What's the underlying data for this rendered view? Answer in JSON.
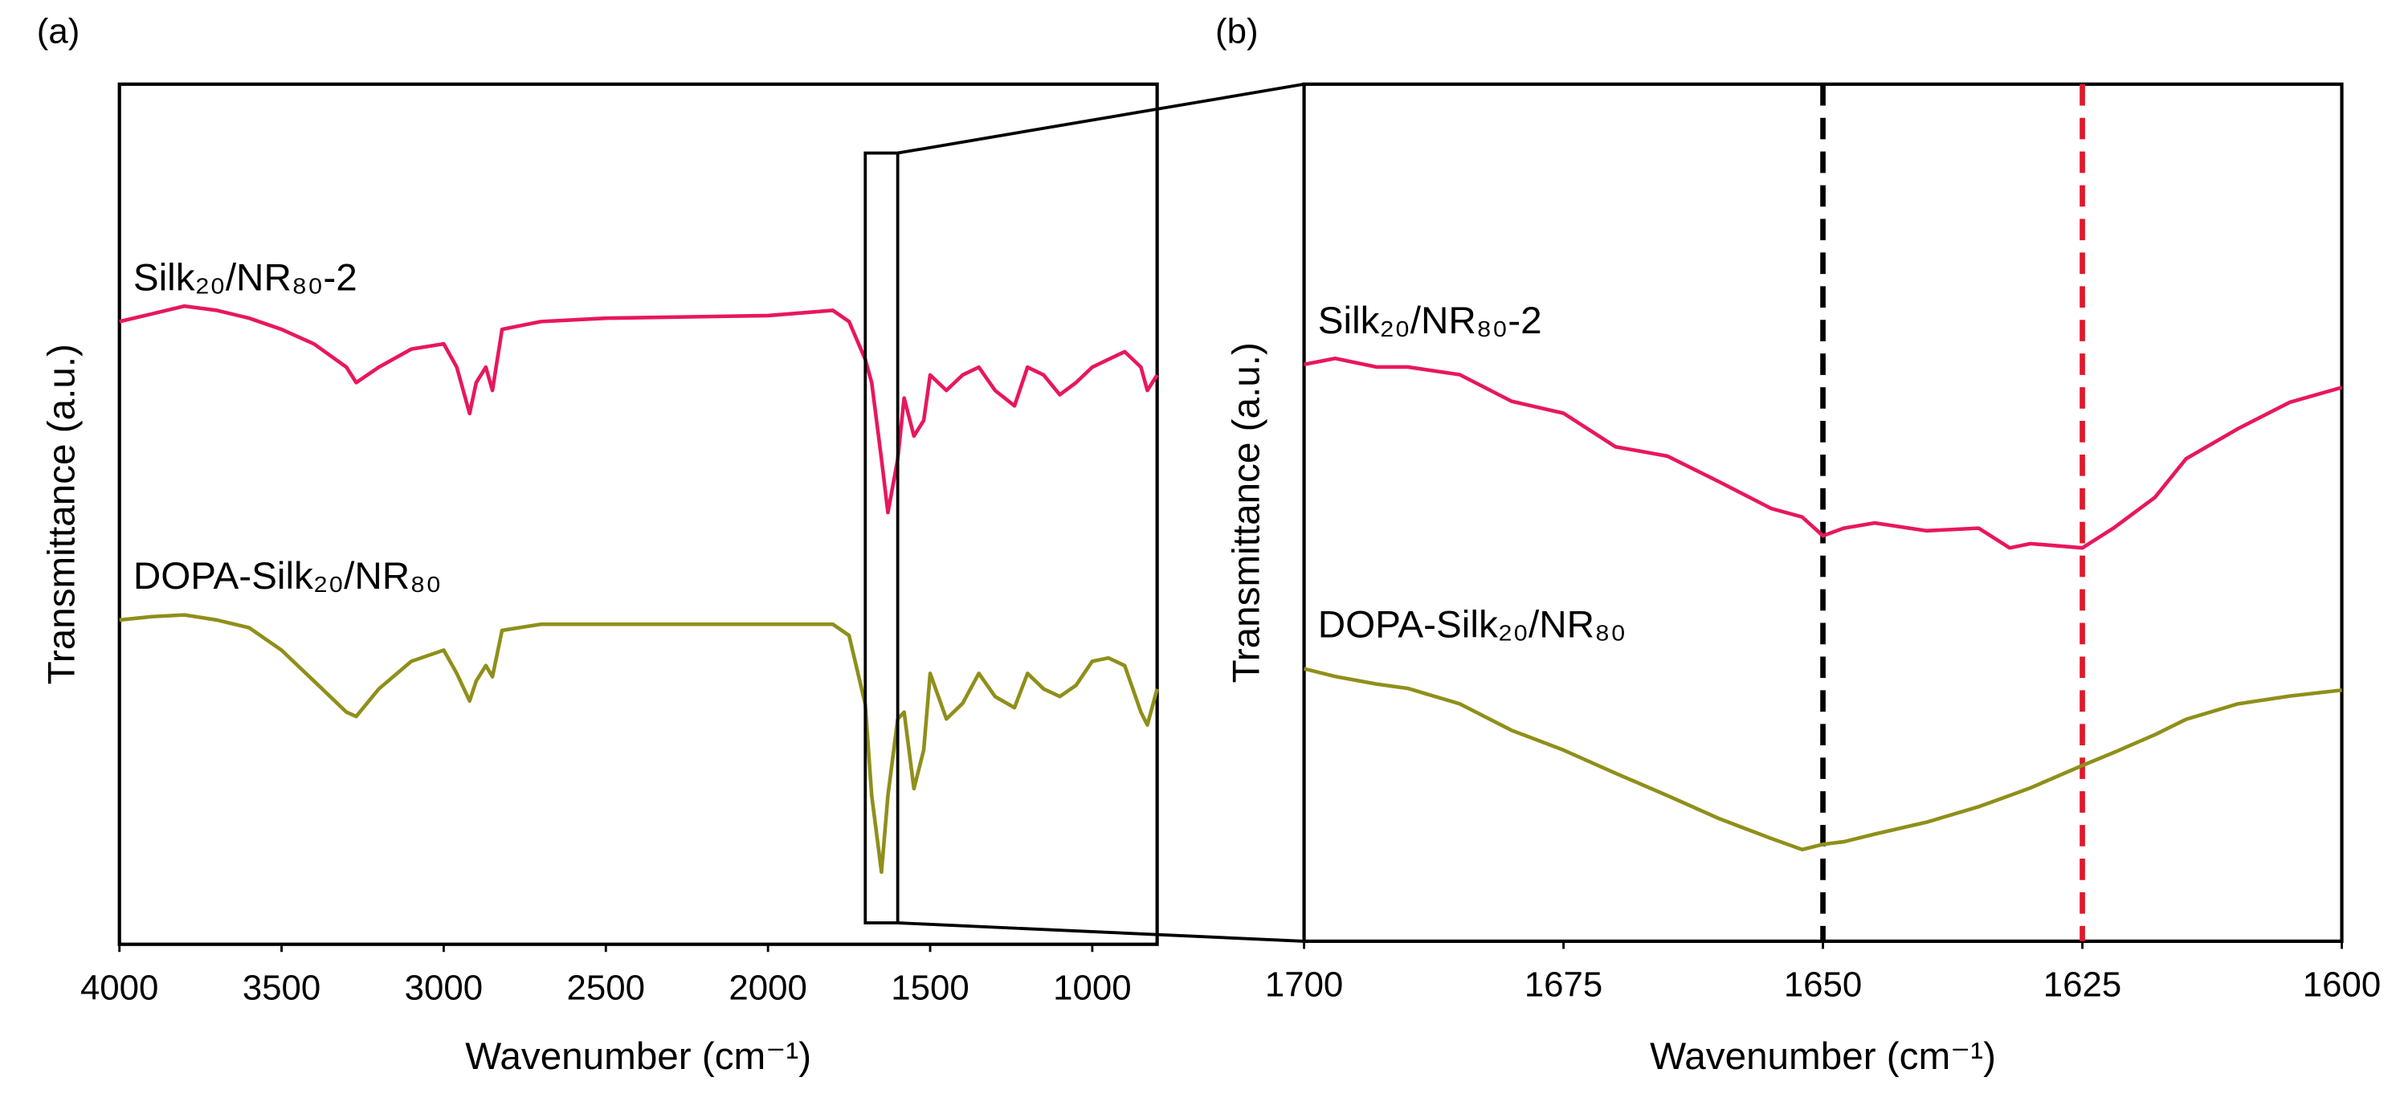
{
  "chart_data": [
    {
      "type": "line",
      "label": "(a)",
      "xlabel": "Wavenumber (cm⁻¹)",
      "ylabel": "Transmittance (a.u.)",
      "xlim": [
        4000,
        800
      ],
      "ylim": [
        0,
        100
      ],
      "xticks": [
        4000,
        3500,
        3000,
        2500,
        2000,
        1500,
        1000
      ],
      "x": [
        4000,
        3900,
        3800,
        3700,
        3600,
        3500,
        3400,
        3300,
        3270,
        3200,
        3100,
        3000,
        2960,
        2920,
        2900,
        2870,
        2850,
        2820,
        2700,
        2500,
        2000,
        1800,
        1750,
        1700,
        1680,
        1650,
        1630,
        1600,
        1580,
        1550,
        1520,
        1500,
        1450,
        1400,
        1350,
        1300,
        1240,
        1200,
        1150,
        1100,
        1050,
        1000,
        950,
        900,
        850,
        830,
        800
      ],
      "series": [
        {
          "name": "Silk₂₀/NR₈₀-2",
          "color": "#e8175d",
          "values": [
            72.4,
            73.3,
            74.2,
            73.7,
            72.8,
            71.5,
            69.8,
            67.1,
            65.3,
            67.1,
            69.2,
            69.8,
            67.1,
            61.7,
            65.3,
            67.1,
            64.4,
            71.5,
            72.4,
            72.8,
            73.1,
            73.7,
            72.4,
            68.0,
            65.3,
            56.4,
            50.2,
            56.4,
            63.5,
            59.1,
            60.9,
            66.2,
            64.4,
            66.2,
            67.1,
            64.4,
            62.6,
            67.1,
            66.2,
            63.9,
            65.3,
            67.1,
            68.0,
            68.9,
            67.1,
            64.4,
            66.2
          ]
        },
        {
          "name": "DOPA-Silk₂₀/NR₈₀",
          "color": "#8f8f1a",
          "values": [
            37.7,
            38.1,
            38.3,
            37.7,
            36.8,
            34.2,
            30.6,
            27.0,
            26.5,
            29.7,
            32.9,
            34.2,
            31.5,
            28.3,
            30.6,
            32.4,
            31.1,
            36.5,
            37.2,
            37.2,
            37.2,
            37.2,
            35.9,
            27.9,
            17.3,
            8.4,
            17.3,
            26.2,
            27.0,
            18.1,
            22.6,
            31.5,
            26.2,
            28.0,
            31.5,
            28.8,
            27.5,
            31.5,
            29.7,
            28.8,
            30.1,
            32.9,
            33.3,
            32.4,
            27.0,
            25.5,
            29.7
          ]
        }
      ]
    },
    {
      "type": "line",
      "label": "(b)",
      "xlabel": "Wavenumber (cm⁻¹)",
      "ylabel": "Transmittance (a.u.)",
      "xlim": [
        1700,
        1600
      ],
      "ylim": [
        0,
        100
      ],
      "xticks": [
        1700,
        1675,
        1650,
        1625,
        1600
      ],
      "vlines": [
        {
          "x": 1650,
          "color": "#000000"
        },
        {
          "x": 1625,
          "color": "#e0192a"
        }
      ],
      "x": [
        1700,
        1697,
        1693,
        1690,
        1685,
        1680,
        1675,
        1670,
        1665,
        1660,
        1655,
        1652,
        1650,
        1648,
        1645,
        1640,
        1635,
        1632,
        1630,
        1625,
        1622,
        1618,
        1615,
        1610,
        1605,
        1600
      ],
      "series": [
        {
          "name": "Silk₂₀/NR₈₀-2",
          "color": "#e8175d",
          "values": [
            67.3,
            68.0,
            67.0,
            67.0,
            66.1,
            63.0,
            61.6,
            57.7,
            56.6,
            53.6,
            50.5,
            49.5,
            47.3,
            48.2,
            48.8,
            47.9,
            48.2,
            45.9,
            46.4,
            45.9,
            48.2,
            51.8,
            56.3,
            59.8,
            62.9,
            64.6
          ]
        },
        {
          "name": "DOPA-Silk₂₀/NR₈₀",
          "color": "#8f8f1a",
          "values": [
            31.8,
            30.9,
            30.0,
            29.5,
            27.7,
            24.6,
            22.3,
            19.6,
            17.0,
            14.3,
            12.0,
            10.7,
            11.3,
            11.6,
            12.5,
            13.9,
            15.7,
            17.0,
            17.9,
            20.5,
            22.0,
            24.1,
            25.9,
            27.7,
            28.6,
            29.3
          ]
        }
      ]
    }
  ]
}
